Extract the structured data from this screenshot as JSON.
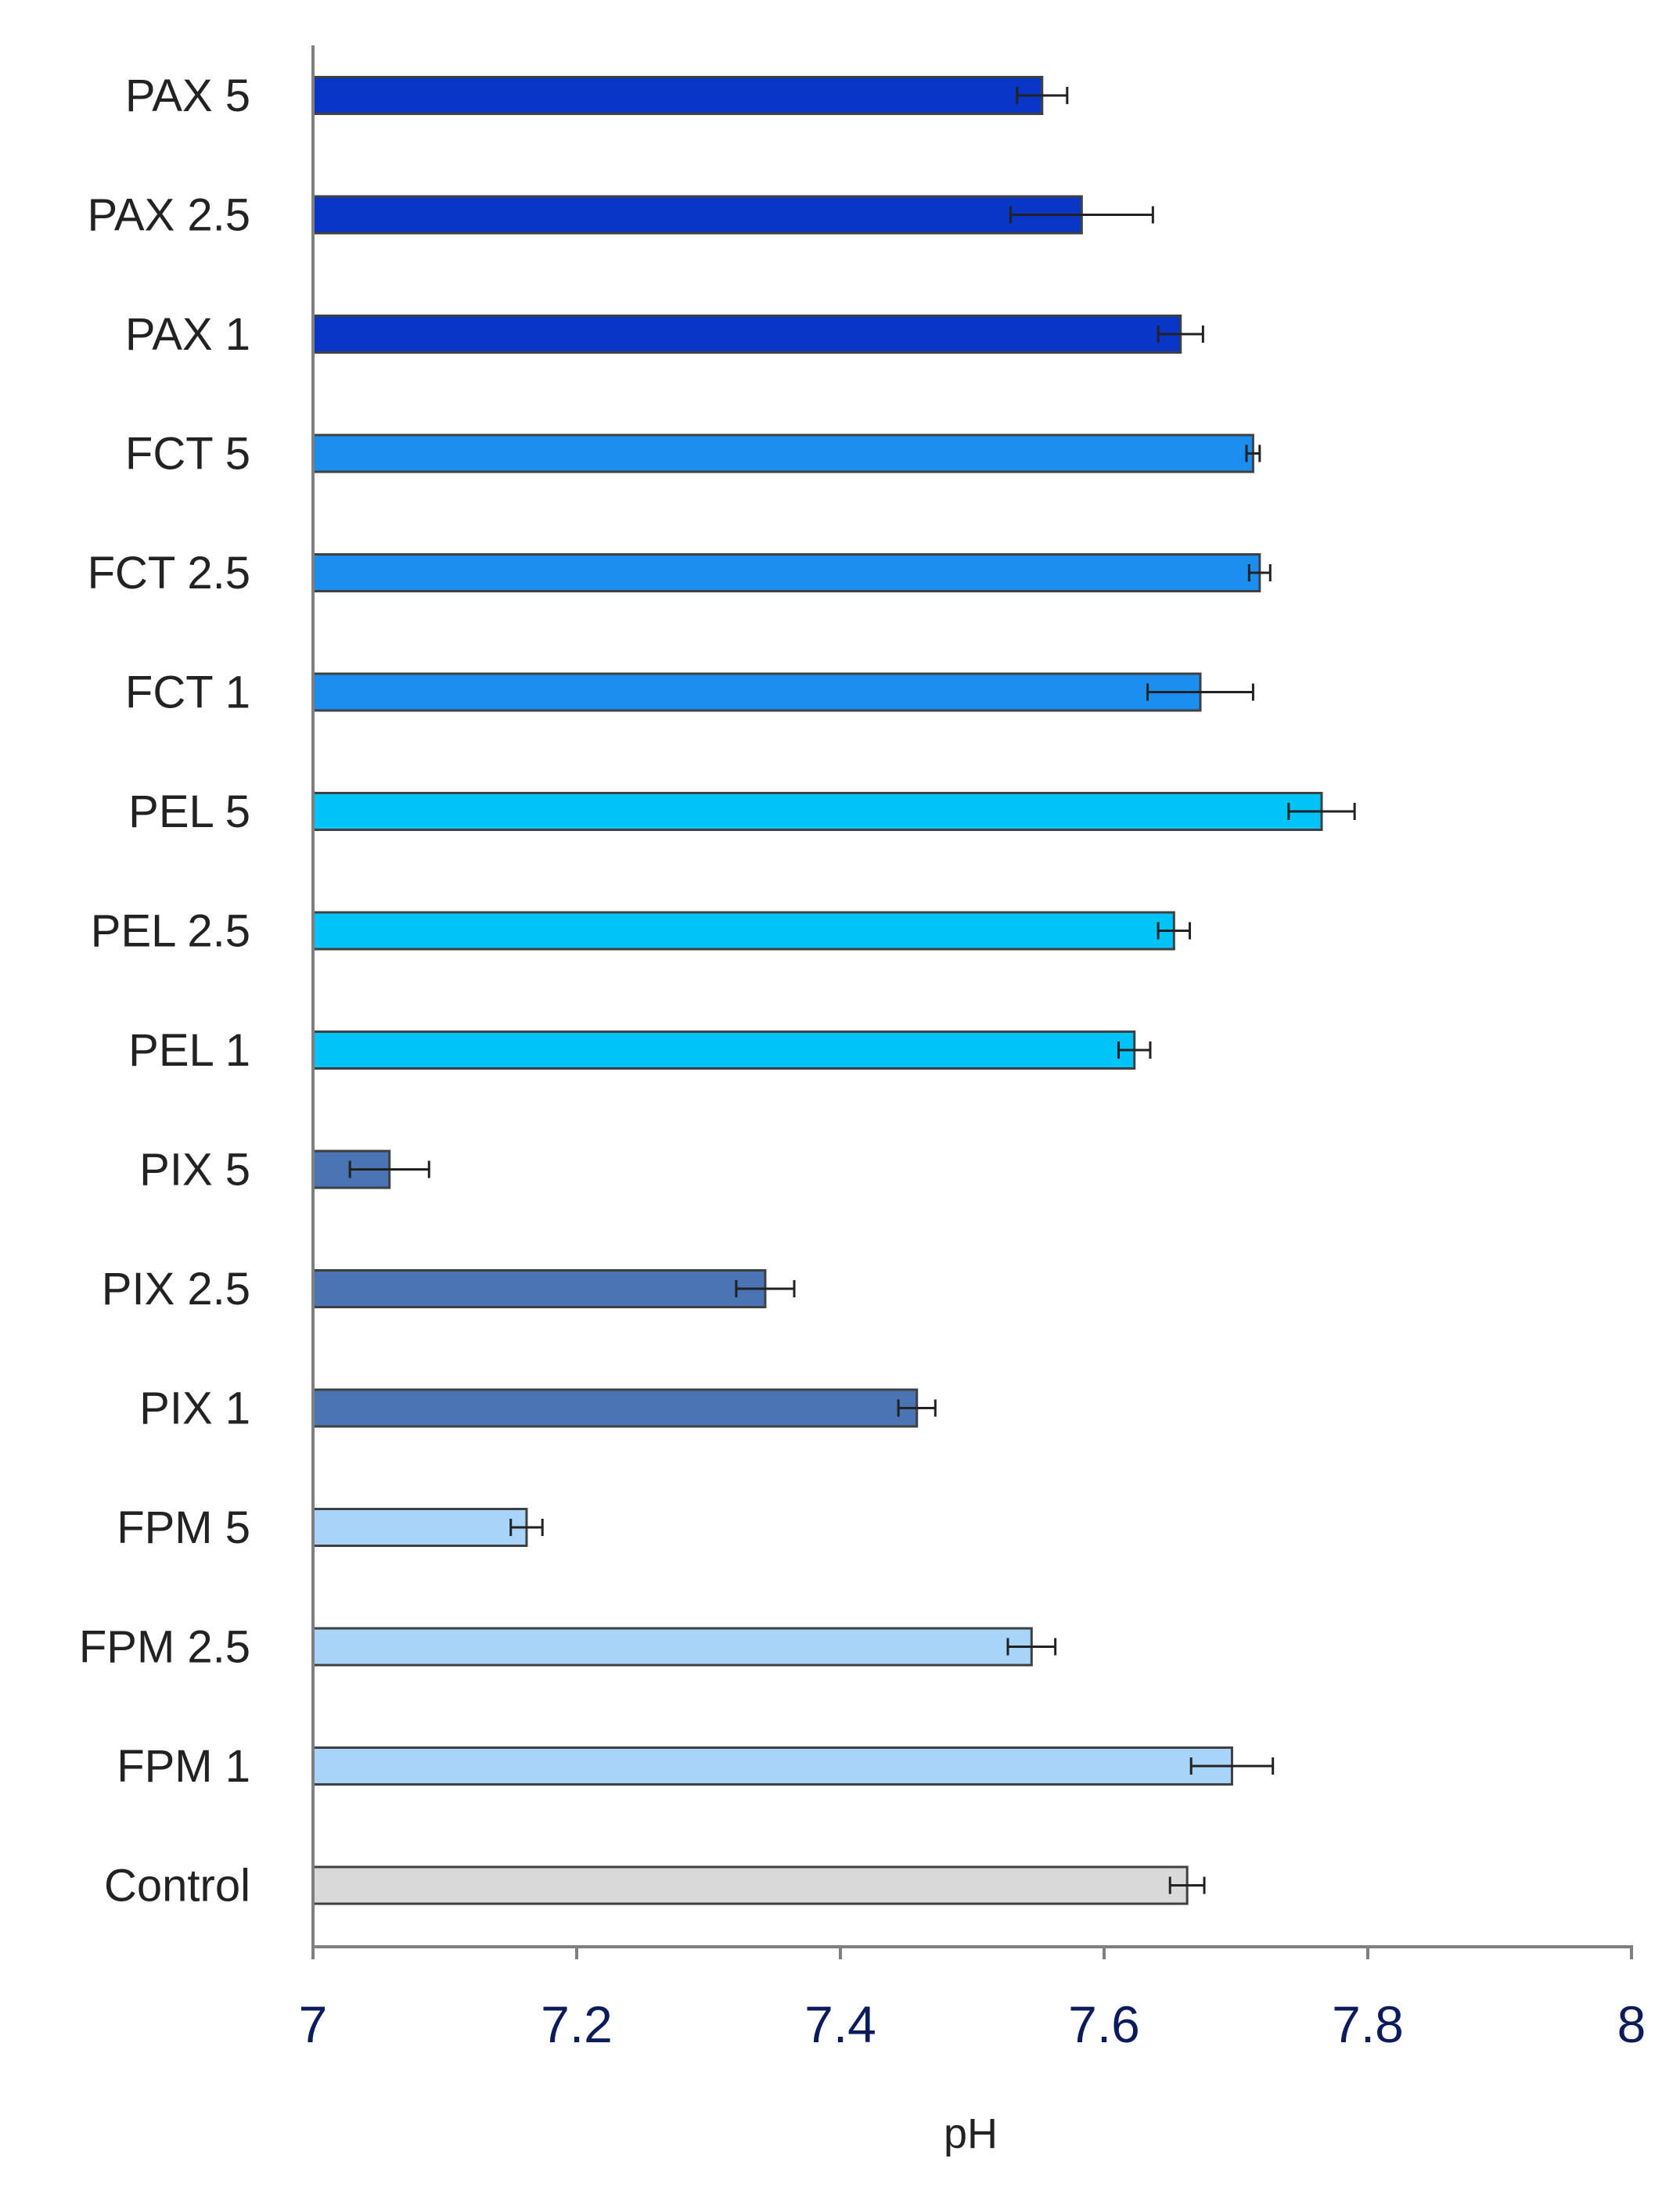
{
  "chart_data": {
    "type": "bar",
    "orientation": "horizontal",
    "title": "",
    "xlabel": "pH",
    "ylabel": "",
    "xlim": [
      7,
      8
    ],
    "xticks": [
      "7",
      "7.2",
      "7.4",
      "7.6",
      "7.8",
      "8"
    ],
    "grid": false,
    "legend": "none",
    "categories": [
      "PAX 5",
      "PAX 2.5",
      "PAX 1",
      "FCT 5",
      "FCT 2.5",
      "FCT 1",
      "PEL 5",
      "PEL 2.5",
      "PEL 1",
      "PIX 5",
      "PIX 2.5",
      "PIX 1",
      "FPM 5",
      "FPM 2.5",
      "FPM 1",
      "Control"
    ],
    "values": [
      7.553,
      7.583,
      7.658,
      7.713,
      7.718,
      7.673,
      7.765,
      7.653,
      7.623,
      7.058,
      7.343,
      7.458,
      7.162,
      7.545,
      7.697,
      7.663
    ],
    "errors": [
      0.019,
      0.054,
      0.017,
      0.005,
      0.008,
      0.04,
      0.025,
      0.012,
      0.012,
      0.03,
      0.022,
      0.014,
      0.012,
      0.018,
      0.031,
      0.013
    ],
    "colors": [
      "#0a36c8",
      "#0a36c8",
      "#0a36c8",
      "#1b8ef0",
      "#1b8ef0",
      "#1b8ef0",
      "#00c4f8",
      "#00c4f8",
      "#00c4f8",
      "#4a74b4",
      "#4a74b4",
      "#4a74b4",
      "#a9d4fa",
      "#a9d4fa",
      "#a9d4fa",
      "#d9d9d9"
    ]
  }
}
